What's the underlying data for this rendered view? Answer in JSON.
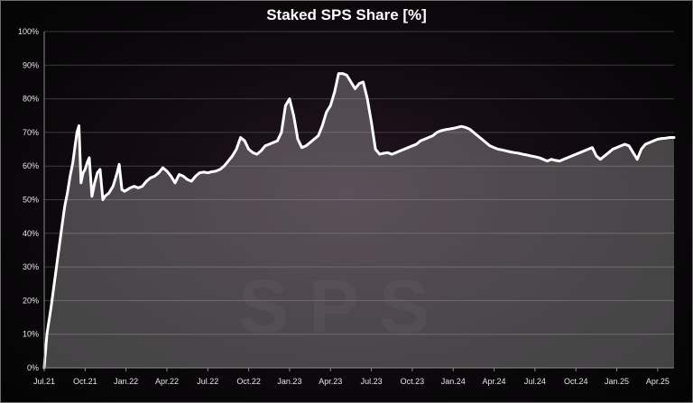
{
  "chart_data": {
    "type": "area",
    "title": "Staked SPS Share [%]",
    "watermark": "SPS",
    "xlabel": "",
    "ylabel": "",
    "ylim": [
      0,
      100
    ],
    "ytick_values": [
      0,
      10,
      20,
      30,
      40,
      50,
      60,
      70,
      80,
      90,
      100
    ],
    "ytick_labels": [
      "0%",
      "10%",
      "20%",
      "30%",
      "40%",
      "50%",
      "60%",
      "70%",
      "80%",
      "90%",
      "100%"
    ],
    "xtick_labels": [
      "Jul.21",
      "Oct.21",
      "Jan.22",
      "Apr.22",
      "Jul.22",
      "Oct.22",
      "Jan.23",
      "Apr.23",
      "Jul.23",
      "Oct.23",
      "Jan.24",
      "Apr.24",
      "Jul.24",
      "Oct.24",
      "Jan.25",
      "Apr.25"
    ],
    "grid": true,
    "legend": "none",
    "colors": {
      "line": "#ffffff",
      "fill": "#ffffff",
      "grid": "#3c3c3c",
      "axis": "#8a8a8a"
    },
    "x_unit": "months since Jul.21",
    "x": [
      0,
      0.05,
      0.1,
      0.2,
      0.35,
      0.5,
      0.7,
      0.9,
      1.1,
      1.3,
      1.5,
      1.7,
      1.9,
      2.1,
      2.3,
      2.4,
      2.55,
      2.7,
      2.85,
      3.0,
      3.15,
      3.3,
      3.5,
      3.7,
      3.9,
      4.1,
      4.3,
      4.45,
      4.6,
      4.75,
      4.9,
      5.05,
      5.2,
      5.35,
      5.5,
      5.7,
      5.9,
      6.1,
      6.3,
      6.6,
      6.9,
      7.2,
      7.5,
      7.8,
      8.1,
      8.4,
      8.7,
      9.0,
      9.3,
      9.6,
      9.9,
      10.2,
      10.5,
      10.8,
      11.1,
      11.4,
      11.7,
      12.0,
      12.3,
      12.6,
      12.9,
      13.2,
      13.5,
      13.8,
      14.1,
      14.4,
      14.7,
      15.0,
      15.3,
      15.6,
      15.9,
      16.2,
      16.5,
      16.8,
      17.1,
      17.4,
      17.7,
      18.0,
      18.3,
      18.6,
      18.9,
      19.2,
      19.5,
      19.8,
      20.1,
      20.4,
      20.7,
      21.0,
      21.3,
      21.6,
      21.9,
      22.2,
      22.5,
      22.8,
      23.1,
      23.4,
      23.7,
      24.0,
      24.3,
      24.6,
      24.9,
      25.2,
      25.5,
      25.8,
      26.1,
      26.4,
      26.7,
      27.0,
      27.3,
      27.6,
      27.9,
      28.2,
      28.5,
      28.8,
      29.1,
      29.4,
      29.7,
      30.0,
      30.3,
      30.6,
      30.9,
      31.2,
      31.5,
      31.8,
      32.1,
      32.4,
      32.7,
      33.0,
      33.3,
      33.6,
      33.9,
      34.2,
      34.5,
      34.8,
      35.1,
      35.4,
      35.7,
      36.0,
      36.3,
      36.6,
      36.9,
      37.2,
      37.5,
      37.8,
      38.1,
      38.4,
      38.7,
      39.0,
      39.3,
      39.6,
      39.9,
      40.2,
      40.5,
      40.8,
      41.1,
      41.4,
      41.7,
      42.0,
      42.3,
      42.6,
      42.9,
      43.2,
      43.5,
      43.8,
      44.1,
      44.4,
      44.7,
      45.0,
      45.3,
      45.6,
      45.9,
      46.2
    ],
    "values": [
      0,
      3,
      5,
      10,
      14,
      18,
      24,
      30,
      36,
      42,
      48,
      52,
      57,
      61,
      67,
      70,
      72,
      55,
      58,
      59,
      61,
      62.5,
      51,
      55,
      58,
      59,
      50,
      51,
      51.5,
      52,
      53,
      54,
      56,
      58,
      60.5,
      53,
      52.5,
      53,
      53.5,
      54,
      53.5,
      54,
      55.5,
      56.5,
      57,
      58,
      59.5,
      58.5,
      57,
      55,
      57.5,
      57,
      56,
      55.5,
      57,
      58,
      58.2,
      58,
      58.3,
      58.5,
      59,
      60,
      61.5,
      63,
      65,
      68.5,
      67.5,
      65,
      64,
      63.5,
      64.5,
      66,
      66.5,
      67,
      67.5,
      70,
      78,
      80,
      75,
      68,
      65.5,
      66,
      67,
      68,
      69,
      72,
      76,
      78,
      82,
      87.5,
      87.5,
      87,
      85,
      83,
      84.5,
      85,
      80,
      73,
      65,
      63.5,
      63.8,
      64,
      63.5,
      64,
      64.5,
      65,
      65.5,
      66,
      66.5,
      67.5,
      68,
      68.5,
      69,
      70,
      70.5,
      70.8,
      71,
      71.2,
      71.5,
      71.8,
      71.5,
      71,
      70,
      69,
      68,
      67,
      66,
      65.5,
      65,
      64.8,
      64.5,
      64.2,
      64,
      63.8,
      63.5,
      63.3,
      63,
      62.8,
      62.5,
      62,
      61.5,
      62,
      61.7,
      61.5,
      62,
      62.5,
      63,
      63.5,
      64,
      64.5,
      65,
      65.5,
      63,
      62,
      63,
      64,
      65,
      65.5,
      66,
      66.5,
      66,
      64,
      62,
      65,
      66.5,
      67,
      67.5,
      68,
      68.2,
      68.3,
      68.5,
      68.5
    ]
  }
}
